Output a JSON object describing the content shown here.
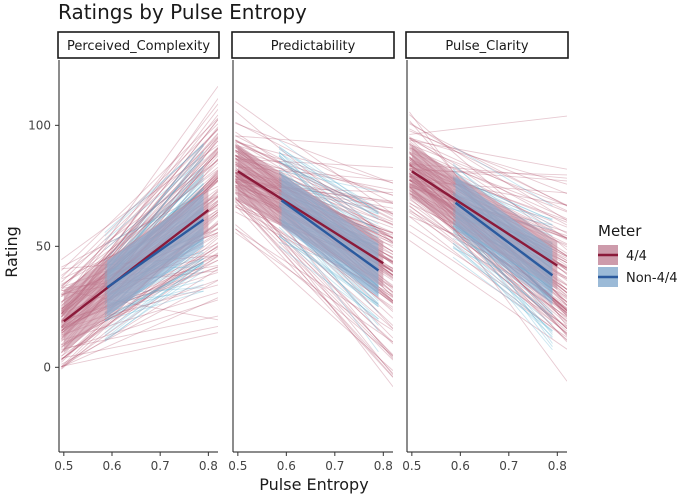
{
  "chart_data": {
    "type": "line",
    "title": "Ratings by Pulse Entropy",
    "xlabel": "Pulse Entropy",
    "ylabel": "Rating",
    "xlim": [
      0.49,
      0.82
    ],
    "ylim": [
      -35,
      127
    ],
    "x_ticks": [
      0.5,
      0.6,
      0.7,
      0.8
    ],
    "x_tick_labels": [
      "0.5",
      "0.6",
      "0.7",
      "0.8"
    ],
    "y_ticks": [
      0,
      50,
      100
    ],
    "y_tick_labels": [
      "0",
      "50",
      "100"
    ],
    "grid": false,
    "legend": {
      "title": "Meter",
      "placement": "right",
      "entries": [
        {
          "label": "4/4",
          "line_color": "#8b1a3a",
          "fill_color": "#c48a9c"
        },
        {
          "label": "Non-4/4",
          "line_color": "#2b5a9e",
          "fill_color": "#8aaed0"
        }
      ]
    },
    "panels": [
      {
        "name": "Perceived_Complexity",
        "series": [
          {
            "name": "4/4",
            "x": [
              0.5,
              0.8
            ],
            "y": [
              19,
              65
            ],
            "band_lower": [
              6,
              56
            ],
            "band_upper": [
              32,
              74
            ]
          },
          {
            "name": "Non-4/4",
            "x": [
              0.59,
              0.79
            ],
            "y": [
              33,
              61
            ],
            "band_lower": [
              21,
              50
            ],
            "band_upper": [
              44,
              72
            ]
          }
        ]
      },
      {
        "name": "Predictability",
        "series": [
          {
            "name": "4/4",
            "x": [
              0.5,
              0.8
            ],
            "y": [
              81,
              43
            ],
            "band_lower": [
              69,
              33
            ],
            "band_upper": [
              92,
              52
            ]
          },
          {
            "name": "Non-4/4",
            "x": [
              0.59,
              0.79
            ],
            "y": [
              69,
              40
            ],
            "band_lower": [
              58,
              29
            ],
            "band_upper": [
              80,
              51
            ]
          }
        ]
      },
      {
        "name": "Pulse_Clarity",
        "series": [
          {
            "name": "4/4",
            "x": [
              0.5,
              0.8
            ],
            "y": [
              81,
              42
            ],
            "band_lower": [
              70,
              32
            ],
            "band_upper": [
              92,
              52
            ]
          },
          {
            "name": "Non-4/4",
            "x": [
              0.59,
              0.79
            ],
            "y": [
              68,
              38
            ],
            "band_lower": [
              57,
              26
            ],
            "band_upper": [
              79,
              49
            ]
          }
        ]
      }
    ]
  }
}
